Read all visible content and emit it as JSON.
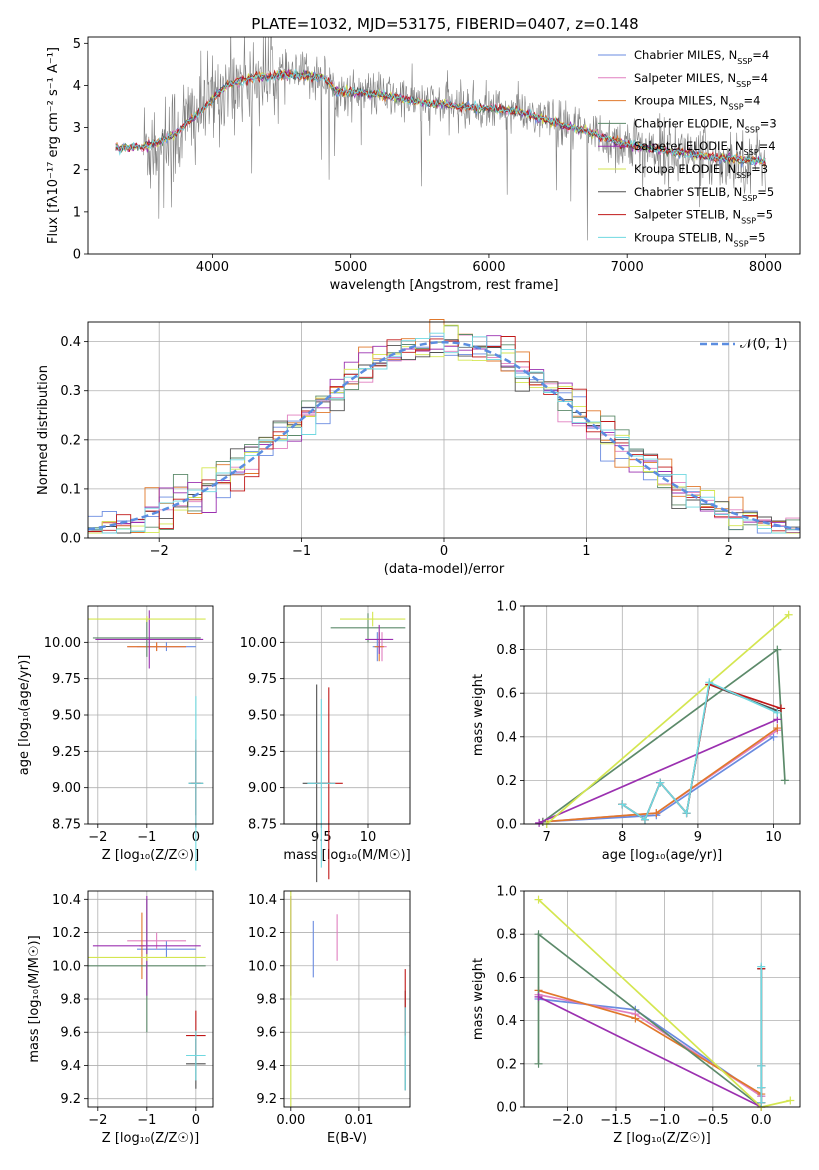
{
  "page": {
    "title": "PLATE=1032, MJD=53175, FIBERID=0407, z=0.148"
  },
  "colors": {
    "Chabrier MILES": "#6a8be0",
    "Salpeter MILES": "#e07fbf",
    "Kroupa MILES": "#e0782b",
    "Chabrier ELODIE": "#5c8a6a",
    "Salpeter ELODIE": "#9b30b0",
    "Kroupa ELODIE": "#d4e650",
    "Chabrier STELIB": "#505050",
    "Salpeter STELIB": "#c01818",
    "Kroupa STELIB": "#6fd8e0",
    "data": "#808080",
    "gauss": "#5b8de0"
  },
  "chart_data": [
    {
      "type": "line",
      "xlabel": "wavelength [Angstrom, rest frame]",
      "ylabel": "Flux [fλ10⁻¹⁷ erg cm⁻² s⁻¹ A⁻¹]",
      "xlim": [
        3100,
        8250
      ],
      "ylim": [
        0,
        5.15
      ],
      "xticks": [
        4000,
        5000,
        6000,
        7000,
        8000
      ],
      "yticks": [
        0,
        1,
        2,
        3,
        4,
        5
      ],
      "grid": false,
      "legend_position": "top-right",
      "legend": [
        "Chabrier MILES, N_SSP=4",
        "Salpeter MILES, N_SSP=4",
        "Kroupa MILES, N_SSP=4",
        "Chabrier ELODIE, N_SSP=3",
        "Salpeter ELODIE, N_SSP=4",
        "Kroupa ELODIE, N_SSP=3",
        "Chabrier STELIB, N_SSP=5",
        "Salpeter STELIB, N_SSP=5",
        "Kroupa STELIB, N_SSP=5"
      ],
      "model_continuum": [
        [
          3300,
          2.5
        ],
        [
          3500,
          2.55
        ],
        [
          3650,
          2.7
        ],
        [
          3750,
          2.9
        ],
        [
          3950,
          3.5
        ],
        [
          4100,
          4.0
        ],
        [
          4300,
          4.2
        ],
        [
          4600,
          4.25
        ],
        [
          4800,
          4.2
        ],
        [
          4900,
          3.85
        ],
        [
          5200,
          3.8
        ],
        [
          5500,
          3.6
        ],
        [
          5800,
          3.5
        ],
        [
          6000,
          3.45
        ],
        [
          6200,
          3.4
        ],
        [
          6400,
          3.2
        ],
        [
          6600,
          3.0
        ],
        [
          6800,
          2.8
        ],
        [
          7000,
          2.6
        ],
        [
          7300,
          2.45
        ],
        [
          7600,
          2.3
        ],
        [
          8000,
          2.2
        ]
      ]
    },
    {
      "type": "line",
      "xlabel": "(data-model)/error",
      "ylabel": "Normed distribution",
      "xlim": [
        -2.5,
        2.5
      ],
      "ylim": [
        0,
        0.44
      ],
      "xticks": [
        -2,
        -1,
        0,
        1,
        2
      ],
      "yticks": [
        0.0,
        0.1,
        0.2,
        0.3,
        0.4
      ],
      "grid": true,
      "legend_position": "top-right",
      "legend_label": "𝒩(0, 1)",
      "hist_x": [
        -2.5,
        2.5
      ],
      "hist_bin_width": 0.1
    },
    {
      "type": "scatter",
      "xlabel": "Z [log₁₀(Z/Z☉)]",
      "ylabel": "age  [log₁₀(age/yr)]",
      "xlim": [
        -2.2,
        0.35
      ],
      "ylim": [
        8.75,
        10.25
      ],
      "xticks": [
        -2,
        -1,
        0
      ],
      "yticks": [
        8.75,
        9.0,
        9.25,
        9.5,
        9.75,
        10.0
      ],
      "grid": true,
      "points": [
        {
          "model": "Chabrier MILES",
          "x": -0.6,
          "xerr": 0.6,
          "y": 9.97,
          "yerr": 0.03
        },
        {
          "model": "Salpeter MILES",
          "x": -0.8,
          "xerr": 0.6,
          "y": 9.97,
          "yerr": 0.03
        },
        {
          "model": "Kroupa MILES",
          "x": -0.8,
          "xerr": 0.6,
          "y": 9.97,
          "yerr": 0.03
        },
        {
          "model": "Chabrier ELODIE",
          "x": -1.0,
          "xerr": 1.1,
          "y": 10.03,
          "yerr": 0.13
        },
        {
          "model": "Salpeter ELODIE",
          "x": -0.95,
          "xerr": 1.1,
          "y": 10.02,
          "yerr": 0.2
        },
        {
          "model": "Kroupa ELODIE",
          "x": -1.0,
          "xerr": 1.2,
          "y": 10.16,
          "yerr": 0.02
        },
        {
          "model": "Chabrier STELIB",
          "x": 0.0,
          "xerr": 0.15,
          "y": 9.03,
          "yerr": 0.22
        },
        {
          "model": "Salpeter STELIB",
          "x": 0.0,
          "xerr": 0.1,
          "y": 9.03,
          "yerr": 0.3
        },
        {
          "model": "Kroupa STELIB",
          "x": 0.0,
          "xerr": 0.15,
          "y": 9.03,
          "yerr": 0.6
        }
      ]
    },
    {
      "type": "scatter",
      "xlabel": "mass [log₁₀(M/M☉)]",
      "ylabel": "",
      "xlim": [
        9.1,
        10.45
      ],
      "ylim": [
        8.75,
        10.25
      ],
      "xticks": [
        9.5,
        10.0
      ],
      "yticks": [
        8.75,
        9.0,
        9.25,
        9.5,
        9.75,
        10.0
      ],
      "grid": true,
      "points": [
        {
          "model": "Chabrier MILES",
          "x": 10.1,
          "xerr": 0.05,
          "y": 9.97,
          "yerr": 0.1
        },
        {
          "model": "Salpeter MILES",
          "x": 10.15,
          "xerr": 0.05,
          "y": 9.97,
          "yerr": 0.1
        },
        {
          "model": "Kroupa MILES",
          "x": 10.12,
          "xerr": 0.05,
          "y": 9.97,
          "yerr": 0.1
        },
        {
          "model": "Chabrier ELODIE",
          "x": 10.0,
          "xerr": 0.4,
          "y": 10.1,
          "yerr": 0.1
        },
        {
          "model": "Salpeter ELODIE",
          "x": 10.12,
          "xerr": 0.15,
          "y": 10.02,
          "yerr": 0.1
        },
        {
          "model": "Kroupa ELODIE",
          "x": 10.05,
          "xerr": 0.35,
          "y": 10.16,
          "yerr": 0.05
        },
        {
          "model": "Chabrier STELIB",
          "x": 9.45,
          "xerr": 0.15,
          "y": 9.03,
          "yerr": 0.68
        },
        {
          "model": "Salpeter STELIB",
          "x": 9.58,
          "xerr": 0.15,
          "y": 9.03,
          "yerr": 0.66
        },
        {
          "model": "Kroupa STELIB",
          "x": 9.5,
          "xerr": 0.15,
          "y": 9.03,
          "yerr": 0.58
        }
      ]
    },
    {
      "type": "line",
      "xlabel": "age  [log₁₀(age/yr)]",
      "ylabel": "mass weight",
      "xlim": [
        6.7,
        10.35
      ],
      "ylim": [
        0,
        1.0
      ],
      "xticks": [
        7,
        8,
        9,
        10
      ],
      "yticks": [
        0.0,
        0.2,
        0.4,
        0.6,
        0.8,
        1.0
      ],
      "grid": true,
      "series": [
        {
          "name": "Chabrier MILES",
          "x": [
            6.95,
            8.45,
            10.0
          ],
          "y": [
            0.01,
            0.04,
            0.4
          ]
        },
        {
          "name": "Salpeter MILES",
          "x": [
            6.95,
            8.45,
            10.05
          ],
          "y": [
            0.01,
            0.05,
            0.43
          ]
        },
        {
          "name": "Kroupa MILES",
          "x": [
            6.95,
            8.45,
            10.05
          ],
          "y": [
            0.01,
            0.05,
            0.44
          ]
        },
        {
          "name": "Chabrier ELODIE",
          "x": [
            6.95,
            10.05,
            10.15
          ],
          "y": [
            0.01,
            0.8,
            0.2
          ]
        },
        {
          "name": "Salpeter ELODIE",
          "x": [
            6.9,
            10.05
          ],
          "y": [
            0.005,
            0.48
          ]
        },
        {
          "name": "Kroupa ELODIE",
          "x": [
            7.0,
            10.2
          ],
          "y": [
            0.0,
            0.96
          ]
        },
        {
          "name": "Chabrier STELIB",
          "x": [
            8.0,
            8.3,
            8.5,
            8.85,
            9.15,
            10.05
          ],
          "y": [
            0.09,
            0.02,
            0.19,
            0.05,
            0.64,
            0.52
          ]
        },
        {
          "name": "Salpeter STELIB",
          "x": [
            8.0,
            8.3,
            8.5,
            8.85,
            9.15,
            10.1
          ],
          "y": [
            0.09,
            0.02,
            0.19,
            0.05,
            0.64,
            0.53
          ]
        },
        {
          "name": "Kroupa STELIB",
          "x": [
            8.0,
            8.3,
            8.5,
            8.85,
            9.15,
            10.05
          ],
          "y": [
            0.09,
            0.02,
            0.19,
            0.05,
            0.65,
            0.51
          ]
        }
      ]
    },
    {
      "type": "scatter",
      "xlabel": "Z [log₁₀(Z/Z☉)]",
      "ylabel": "mass [log₁₀(M/M☉)]",
      "xlim": [
        -2.2,
        0.35
      ],
      "ylim": [
        9.15,
        10.45
      ],
      "xticks": [
        -2,
        -1,
        0
      ],
      "yticks": [
        9.2,
        9.4,
        9.6,
        9.8,
        10.0,
        10.2,
        10.4
      ],
      "grid": true,
      "points": [
        {
          "model": "Chabrier MILES",
          "x": -0.6,
          "xerr": 0.6,
          "y": 10.1,
          "yerr": 0.05
        },
        {
          "model": "Salpeter MILES",
          "x": -0.8,
          "xerr": 0.6,
          "y": 10.15,
          "yerr": 0.05
        },
        {
          "model": "Kroupa MILES",
          "x": -1.1,
          "xerr": 0.05,
          "y": 10.12,
          "yerr": 0.2
        },
        {
          "model": "Chabrier ELODIE",
          "x": -1.0,
          "xerr": 1.2,
          "y": 10.0,
          "yerr": 0.4
        },
        {
          "model": "Salpeter ELODIE",
          "x": -1.0,
          "xerr": 1.1,
          "y": 10.12,
          "yerr": 0.3
        },
        {
          "model": "Kroupa ELODIE",
          "x": -1.0,
          "xerr": 1.2,
          "y": 10.05,
          "yerr": 0.02
        },
        {
          "model": "Chabrier STELIB",
          "x": 0.0,
          "xerr": 0.2,
          "y": 9.41,
          "yerr": 0.15
        },
        {
          "model": "Salpeter STELIB",
          "x": 0.0,
          "xerr": 0.2,
          "y": 9.58,
          "yerr": 0.15
        },
        {
          "model": "Kroupa STELIB",
          "x": 0.0,
          "xerr": 0.2,
          "y": 9.46,
          "yerr": 0.15
        }
      ]
    },
    {
      "type": "scatter",
      "xlabel": "E(B-V)",
      "ylabel": "",
      "xlim": [
        -0.001,
        0.0175
      ],
      "ylim": [
        9.15,
        10.45
      ],
      "xticks": [
        0.0,
        0.01
      ],
      "xtick_labels": [
        "0.00",
        "0.01"
      ],
      "yticks": [
        9.2,
        9.4,
        9.6,
        9.8,
        10.0,
        10.2,
        10.4
      ],
      "grid": true,
      "points": [
        {
          "model": "Chabrier MILES",
          "x": 0.0033,
          "y": 10.1,
          "yerr": 0.17
        },
        {
          "model": "Salpeter MILES",
          "x": 0.0068,
          "y": 10.17,
          "yerr": 0.14
        },
        {
          "model": "Salpeter ELODIE",
          "x": 0.0,
          "y": 10.12,
          "yerr": 0.3
        },
        {
          "model": "Kroupa ELODIE",
          "x": 0.0,
          "y": 9.8,
          "yerr": 0.65
        },
        {
          "model": "Chabrier STELIB",
          "x": 0.0168,
          "y": 9.55,
          "yerr": 0.3
        },
        {
          "model": "Salpeter STELIB",
          "x": 0.0168,
          "y": 9.78,
          "yerr": 0.2
        },
        {
          "model": "Kroupa STELIB",
          "x": 0.0168,
          "y": 9.5,
          "yerr": 0.25
        }
      ]
    },
    {
      "type": "line",
      "xlabel": "Z [log₁₀(Z/Z☉)]",
      "ylabel": "mass weight",
      "xlim": [
        -2.45,
        0.4
      ],
      "ylim": [
        0,
        1.0
      ],
      "xticks": [
        -2.0,
        -1.5,
        -1.0,
        -0.5,
        0.0
      ],
      "xtick_labels": [
        "−2.0",
        "−1.5",
        "−1.0",
        "−0.5",
        "0.0"
      ],
      "yticks": [
        0.0,
        0.2,
        0.4,
        0.6,
        0.8,
        1.0
      ],
      "grid": true,
      "series": [
        {
          "name": "Chabrier MILES",
          "x": [
            -2.3,
            -1.3,
            0.0
          ],
          "y": [
            0.5,
            0.45,
            0.05
          ]
        },
        {
          "name": "Salpeter MILES",
          "x": [
            -2.3,
            -1.3,
            0.0
          ],
          "y": [
            0.52,
            0.43,
            0.05
          ]
        },
        {
          "name": "Kroupa MILES",
          "x": [
            -2.3,
            -1.3,
            0.0
          ],
          "y": [
            0.54,
            0.41,
            0.06
          ]
        },
        {
          "name": "Chabrier ELODIE",
          "x": [
            -2.3,
            -2.3,
            0.0
          ],
          "y": [
            0.2,
            0.8,
            0.0
          ]
        },
        {
          "name": "Salpeter ELODIE",
          "x": [
            -2.3,
            0.0
          ],
          "y": [
            0.51,
            0.0
          ]
        },
        {
          "name": "Kroupa ELODIE",
          "x": [
            -2.3,
            0.0,
            0.3
          ],
          "y": [
            0.96,
            0.0,
            0.03
          ]
        },
        {
          "name": "Chabrier STELIB",
          "x": [
            0.0,
            0.0,
            0.0,
            0.0
          ],
          "y": [
            0.02,
            0.19,
            0.09,
            0.64
          ]
        },
        {
          "name": "Salpeter STELIB",
          "x": [
            0.0,
            0.0,
            0.0,
            0.0
          ],
          "y": [
            0.02,
            0.19,
            0.09,
            0.64
          ]
        },
        {
          "name": "Kroupa STELIB",
          "x": [
            0.0,
            0.0,
            0.0,
            0.0
          ],
          "y": [
            0.02,
            0.19,
            0.09,
            0.65
          ]
        }
      ]
    }
  ]
}
